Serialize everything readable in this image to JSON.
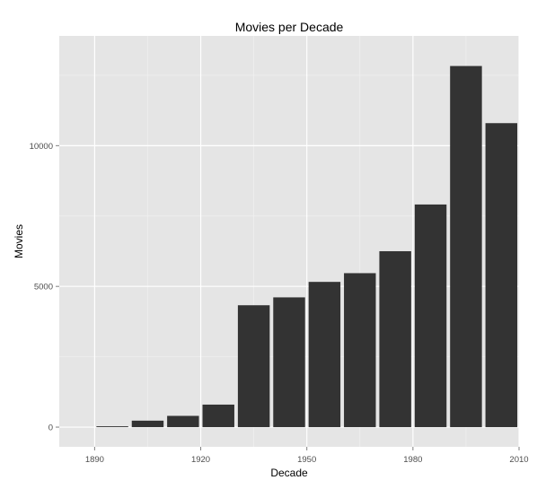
{
  "chart_data": {
    "type": "bar",
    "title": "Movies per Decade",
    "xlabel": "Decade",
    "ylabel": "Movies",
    "x": [
      1890,
      1900,
      1910,
      1920,
      1930,
      1940,
      1950,
      1960,
      1970,
      1980,
      1990,
      2000
    ],
    "values": [
      30,
      230,
      400,
      800,
      4330,
      4610,
      5160,
      5470,
      6250,
      7910,
      12830,
      10800
    ],
    "xlim": [
      1880,
      2010
    ],
    "ylim": [
      -700,
      13900
    ],
    "x_ticks": [
      1890,
      1920,
      1950,
      1980,
      2010
    ],
    "y_ticks": [
      0,
      5000,
      10000
    ],
    "x_tick_labels": [
      "1890",
      "1920",
      "1950",
      "1980",
      "2010"
    ],
    "y_tick_labels": [
      "0",
      "5000",
      "10000"
    ],
    "grid": true,
    "legend": "none",
    "colors": {
      "panel": "#e5e5e5",
      "grid_major": "#ffffff",
      "grid_minor": "#f2f2f2",
      "bar": "#333333",
      "tick": "#7f7f7f"
    }
  }
}
